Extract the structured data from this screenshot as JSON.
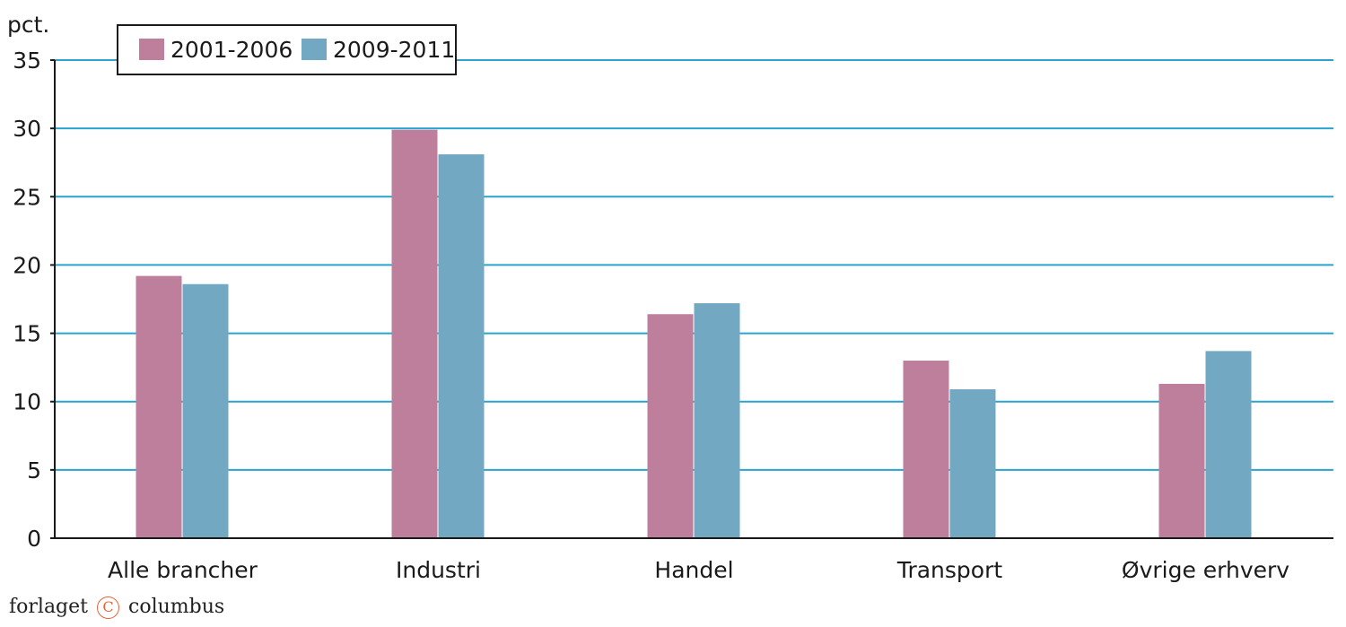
{
  "chart_data": {
    "type": "bar",
    "unit_label": "pct.",
    "categories": [
      "Alle brancher",
      "Industri",
      "Handel",
      "Transport",
      "Øvrige erhverv"
    ],
    "series": [
      {
        "name": "2001-2006",
        "color": "#be7f9d",
        "values": [
          19.2,
          29.9,
          16.4,
          13.0,
          11.3
        ]
      },
      {
        "name": "2009-2011",
        "color": "#72a8c2",
        "values": [
          18.6,
          28.1,
          17.2,
          10.9,
          13.7
        ]
      }
    ],
    "ylim": [
      0,
      35
    ],
    "yticks": [
      0,
      5,
      10,
      15,
      20,
      25,
      30,
      35
    ],
    "grid": true,
    "grid_color": "#2aa3d0",
    "legend_position": "top-left"
  },
  "footer": {
    "publisher_left": "forlaget",
    "publisher_mark": "C",
    "publisher_right": "columbus"
  }
}
